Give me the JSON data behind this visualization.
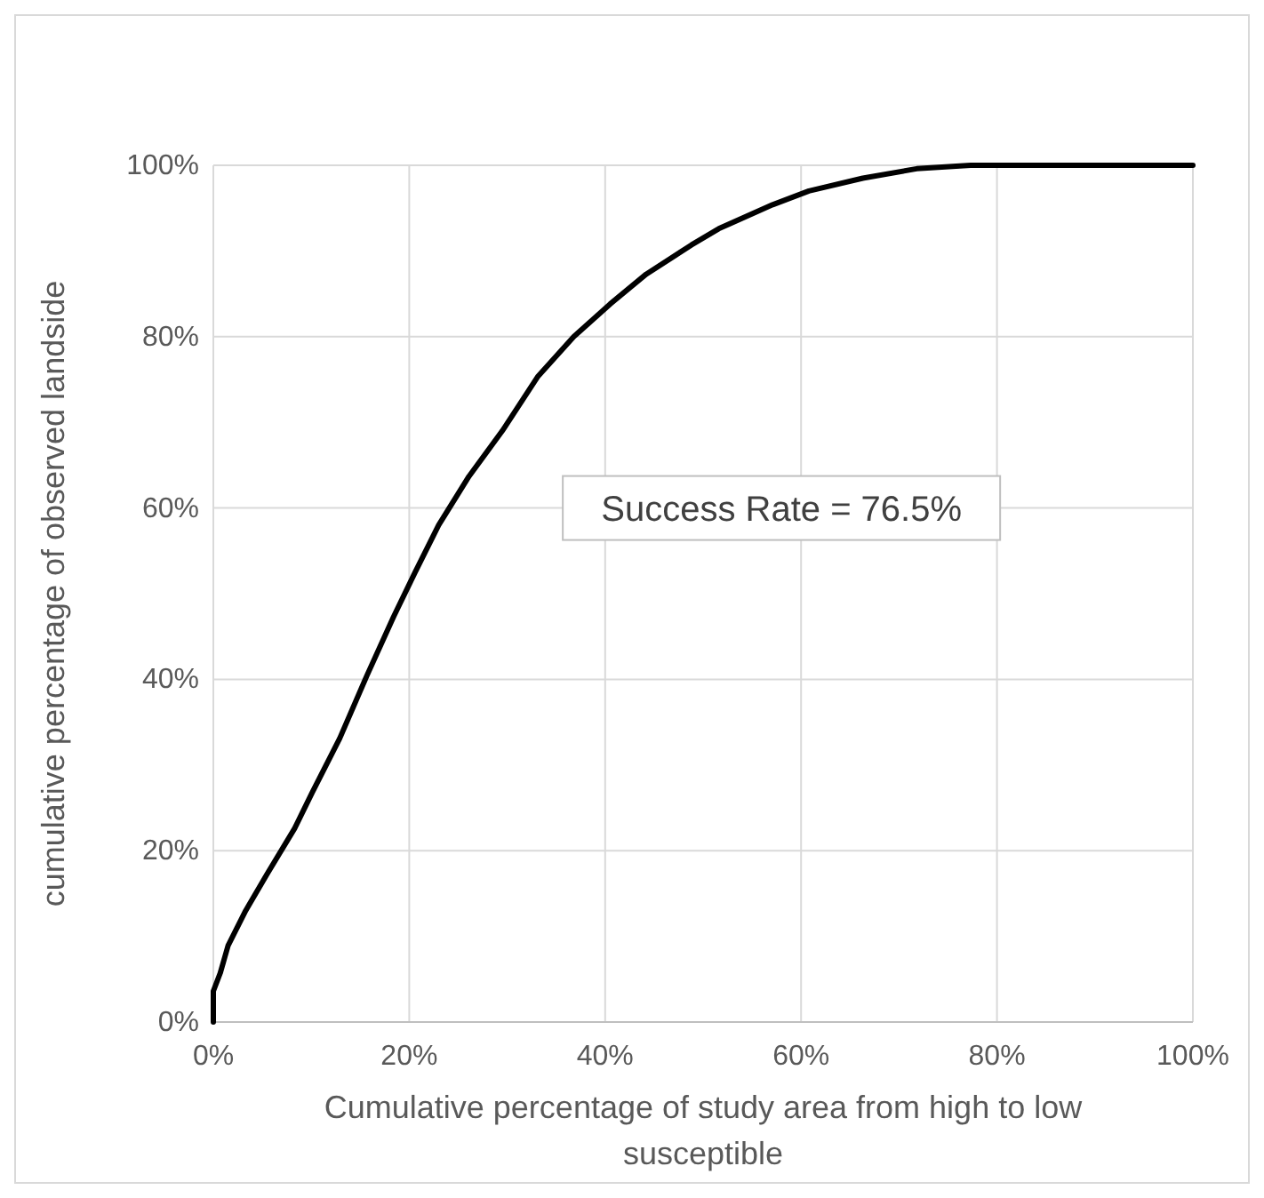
{
  "chart_data": {
    "type": "line",
    "xlabel": "Cumulative percentage of study area from high to low susceptible",
    "ylabel": "cumulative percentage of observed landside",
    "annotations": [
      "Success Rate = 76.5%"
    ],
    "x": [
      0,
      0,
      0.7,
      1.5,
      3.3,
      5.5,
      8.3,
      10.1,
      12.9,
      15.7,
      18.4,
      20.6,
      23,
      26.1,
      29.5,
      33.1,
      36.8,
      40.5,
      44.2,
      48.8,
      51.6,
      57.1,
      60.8,
      66.3,
      71.8,
      77.3,
      100
    ],
    "series": [
      {
        "color": "#000000",
        "values": [
          0,
          3.6,
          5.7,
          8.9,
          13,
          17.3,
          22.6,
          26.8,
          33.1,
          40.5,
          47.3,
          52.5,
          58,
          63.7,
          69,
          75.3,
          80,
          83.8,
          87.3,
          90.7,
          92.6,
          95.4,
          97,
          98.5,
          99.6,
          100,
          100
        ]
      }
    ],
    "xlim": [
      0,
      100
    ],
    "ylim": [
      0,
      100
    ],
    "xticks": [
      {
        "value": 0,
        "label": "0%"
      },
      {
        "value": 20,
        "label": "20%"
      },
      {
        "value": 40,
        "label": "40%"
      },
      {
        "value": 60,
        "label": "60%"
      },
      {
        "value": 80,
        "label": "80%"
      },
      {
        "value": 100,
        "label": "100%"
      }
    ],
    "yticks": [
      {
        "value": 0,
        "label": "0%"
      },
      {
        "value": 20,
        "label": "20%"
      },
      {
        "value": 40,
        "label": "40%"
      },
      {
        "value": 60,
        "label": "60%"
      },
      {
        "value": 80,
        "label": "80%"
      },
      {
        "value": 100,
        "label": "100%"
      }
    ],
    "grid": true,
    "marker": "none",
    "line_style": "solid"
  }
}
